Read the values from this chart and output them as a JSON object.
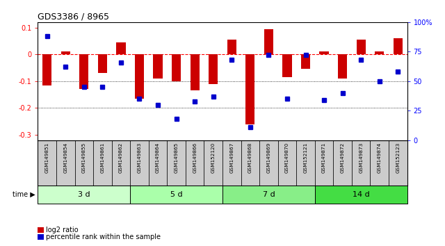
{
  "title": "GDS3386 / 8965",
  "samples": [
    "GSM149851",
    "GSM149854",
    "GSM149855",
    "GSM149861",
    "GSM149862",
    "GSM149863",
    "GSM149864",
    "GSM149865",
    "GSM149866",
    "GSM152120",
    "GSM149867",
    "GSM149868",
    "GSM149869",
    "GSM149870",
    "GSM152121",
    "GSM149871",
    "GSM149872",
    "GSM149873",
    "GSM149874",
    "GSM152123"
  ],
  "log2_ratio": [
    -0.115,
    0.01,
    -0.13,
    -0.07,
    0.045,
    -0.165,
    -0.09,
    -0.1,
    -0.135,
    -0.11,
    0.055,
    -0.26,
    0.095,
    -0.085,
    -0.055,
    0.01,
    -0.09,
    0.055,
    0.01,
    0.06
  ],
  "percentile_rank": [
    88,
    62,
    45,
    45,
    66,
    35,
    30,
    18,
    33,
    37,
    68,
    11,
    72,
    35,
    72,
    34,
    40,
    68,
    50,
    58
  ],
  "groups": [
    {
      "label": "3 d",
      "start": 0,
      "end": 5,
      "color": "#ccffcc"
    },
    {
      "label": "5 d",
      "start": 5,
      "end": 10,
      "color": "#aaffaa"
    },
    {
      "label": "7 d",
      "start": 10,
      "end": 15,
      "color": "#88ee88"
    },
    {
      "label": "14 d",
      "start": 15,
      "end": 20,
      "color": "#44dd44"
    }
  ],
  "bar_color": "#cc0000",
  "dot_color": "#0000cc",
  "ylim_left": [
    -0.32,
    0.12
  ],
  "ylim_right": [
    0,
    100
  ],
  "hlines_dotted": [
    -0.1,
    -0.2
  ],
  "hline_dashed": 0.0,
  "background_color": "#ffffff",
  "sample_bg_color": "#cccccc",
  "bar_width": 0.5
}
